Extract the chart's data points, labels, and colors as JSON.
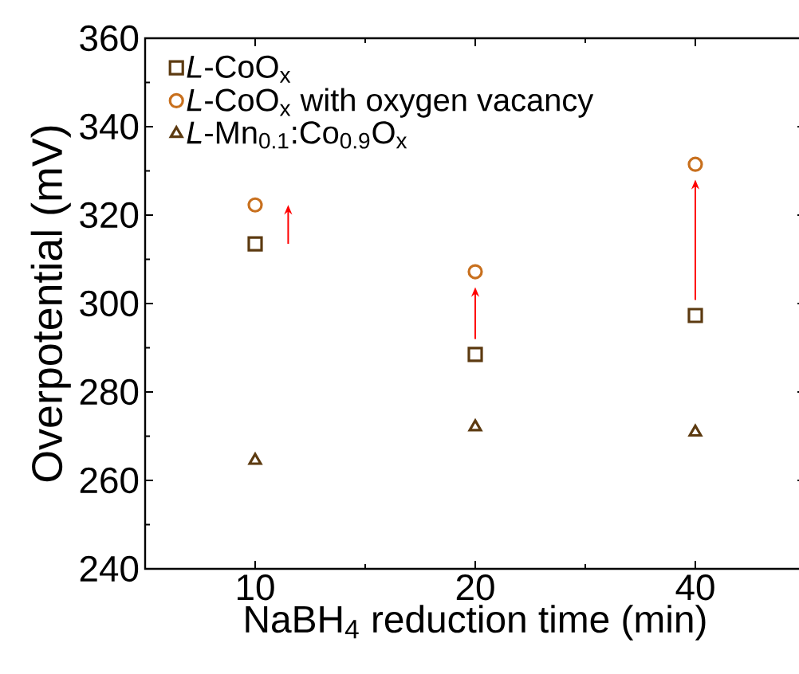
{
  "chart_data": {
    "type": "scatter",
    "xlabel": "NaBH$_{4}$ reduction time (min)",
    "ylabel": "Overpotential (mV)",
    "categories": [
      "10",
      "20",
      "40"
    ],
    "ylim": [
      240,
      360
    ],
    "yticks": [
      240,
      260,
      280,
      300,
      320,
      340,
      360
    ],
    "legend": "top left",
    "grid": false,
    "series": [
      {
        "name": "*L*-CoO$_{x}$",
        "color": "#5c3a10",
        "marker": "square",
        "values": [
          313.5,
          288.5,
          297.3
        ]
      },
      {
        "name": "*L*-CoO$_{x}$ with oxygen vacancy",
        "color": "#c8701e",
        "marker": "circle",
        "values": [
          322.3,
          307.2,
          331.5
        ]
      },
      {
        "name": "*L*-Mn$_{0.1}$:Co$_{0.9}$O$_{x}$",
        "color": "#5c3a10",
        "marker": "triangle",
        "values": [
          264.5,
          272.1,
          270.9
        ]
      }
    ]
  }
}
